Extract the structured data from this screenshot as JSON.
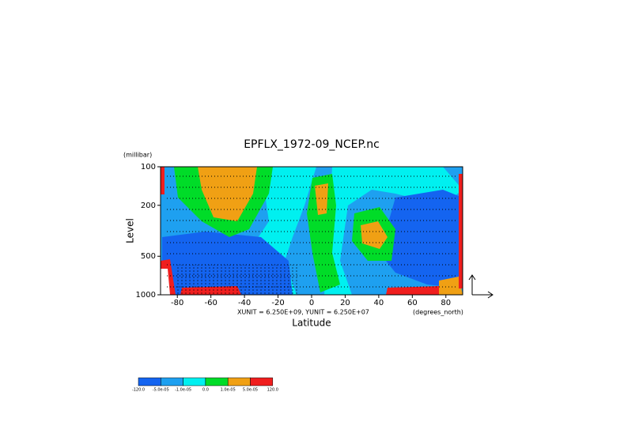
{
  "chart_data": {
    "type": "contour",
    "title": "EPFLX_1972-09_NCEP.nc",
    "y_unit": "(millibar)",
    "ylabel": "Level",
    "xlabel": "Latitude",
    "vector_note": "XUNIT = 6.250E+09, YUNIT = 6.250E+07",
    "x_unit": "(degrees_north)",
    "xlim": [
      -90,
      90
    ],
    "xticks": [
      -80,
      -60,
      -40,
      -20,
      0,
      20,
      40,
      60,
      80
    ],
    "ylim": [
      1000,
      100
    ],
    "yticks": [
      100,
      200,
      500,
      1000
    ],
    "ylog": true,
    "colorbar": {
      "colors": [
        "#1464f0",
        "#1ea0f0",
        "#00f0f0",
        "#00dc28",
        "#f0a014",
        "#f01e1e"
      ],
      "labels": [
        "-120.0",
        "-5.0e-05",
        "-1.0e-05",
        "0.0",
        "1.0e-05",
        "5.0e-05",
        "120.0"
      ]
    }
  }
}
